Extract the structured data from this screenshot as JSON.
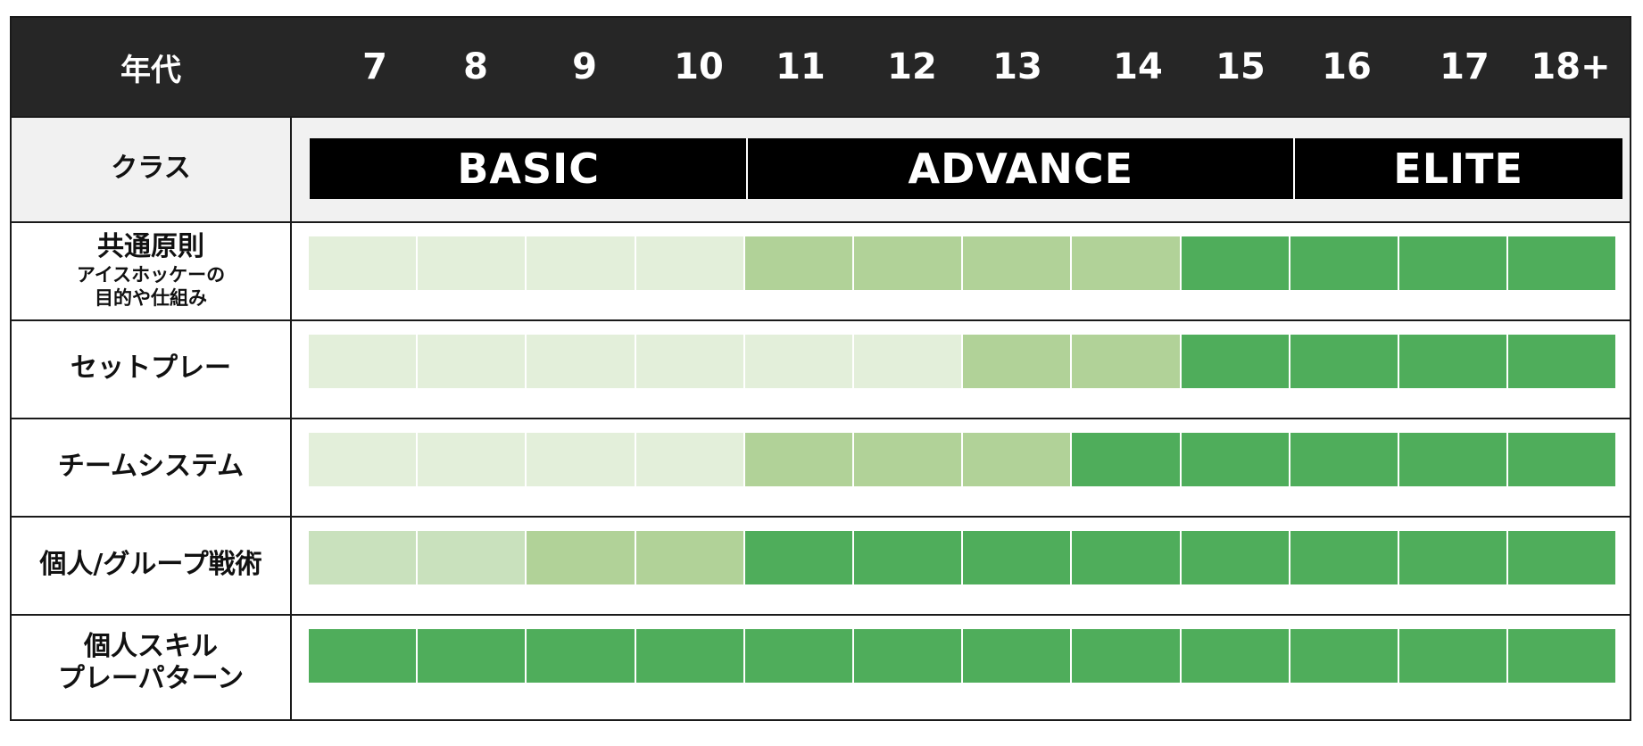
{
  "header": {
    "label": "年代",
    "ages": [
      "7",
      "8",
      "9",
      "10",
      "11",
      "12",
      "13",
      "14",
      "15",
      "16",
      "17",
      "18+"
    ]
  },
  "class_row": {
    "label": "クラス",
    "bands": [
      {
        "name": "BASIC",
        "from_age_index": 0,
        "to_age_index": 3
      },
      {
        "name": "ADVANCE",
        "from_age_index": 4,
        "to_age_index": 8
      },
      {
        "name": "ELITE",
        "from_age_index": 9,
        "to_age_index": 11
      }
    ]
  },
  "legend_colors": {
    "level1": "#e3efda",
    "level2": "#c9e1bd",
    "level3": "#b1d298",
    "level4": "#4fad5b"
  },
  "rows": [
    {
      "label": "共通原則",
      "sub": [
        "アイスホッケーの",
        "目的や仕組み"
      ],
      "levels": [
        1,
        1,
        1,
        1,
        3,
        3,
        3,
        3,
        4,
        4,
        4,
        4
      ]
    },
    {
      "label": "セットプレー",
      "sub": [],
      "levels": [
        1,
        1,
        1,
        1,
        1,
        1,
        3,
        3,
        4,
        4,
        4,
        4
      ]
    },
    {
      "label": "チームシステム",
      "sub": [],
      "levels": [
        1,
        1,
        1,
        1,
        3,
        3,
        3,
        4,
        4,
        4,
        4,
        4
      ]
    },
    {
      "label": "個人/グループ戦術",
      "sub": [],
      "levels": [
        2,
        2,
        3,
        3,
        4,
        4,
        4,
        4,
        4,
        4,
        4,
        4
      ]
    },
    {
      "label": "個人スキル",
      "sub": [
        "プレーパターン"
      ],
      "levels": [
        4,
        4,
        4,
        4,
        4,
        4,
        4,
        4,
        4,
        4,
        4,
        4
      ]
    }
  ]
}
